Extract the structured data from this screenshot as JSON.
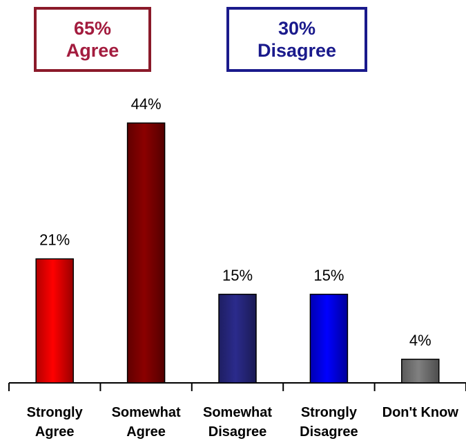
{
  "summary": {
    "agree": {
      "percent": "65%",
      "label": "Agree"
    },
    "disagree": {
      "percent": "30%",
      "label": "Disagree"
    }
  },
  "chart_data": {
    "type": "bar",
    "categories": [
      [
        "Strongly",
        "Agree"
      ],
      [
        "Somewhat",
        "Agree"
      ],
      [
        "Somewhat",
        "Disagree"
      ],
      [
        "Strongly",
        "Disagree"
      ],
      [
        "Don't Know"
      ]
    ],
    "values": [
      21,
      44,
      15,
      15,
      4
    ],
    "data_labels": [
      "21%",
      "44%",
      "15%",
      "15%",
      "4%"
    ],
    "colors": [
      "#ff0000",
      "#8b0000",
      "#2b2b8c",
      "#0000ff",
      "#808080"
    ],
    "ylim": [
      0,
      50
    ],
    "grid": false,
    "legend": "none"
  }
}
